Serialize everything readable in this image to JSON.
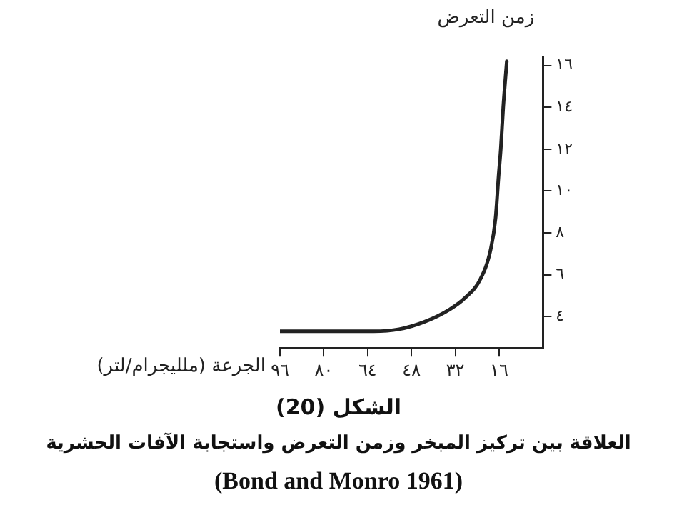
{
  "chart_data": {
    "type": "line",
    "title": "الشكل (20)",
    "subtitle": "العلاقة بين تركيز المبخر وزمن التعرض واستجابة الآفات الحشرية",
    "annotations": [
      "(Bond and Monro 1961)"
    ],
    "xlabel": "الجرعة (ملليجرام/لتر)",
    "ylabel": "زمن التعرض",
    "x": [
      96,
      80,
      61.8,
      52.5,
      43.3,
      34,
      28.4,
      22.8,
      19.1,
      17.3,
      16.2,
      15.4,
      14.5,
      13.2
    ],
    "series": [
      {
        "color": "#222222",
        "values": [
          3.3,
          3.3,
          3.3,
          3.4,
          3.75,
          4.35,
          4.9,
          5.8,
          7.2,
          8.7,
          10.7,
          12,
          14,
          16.2
        ]
      }
    ],
    "xlim": [
      96,
      0
    ],
    "xticks": [
      {
        "value": 96,
        "label": "٩٦"
      },
      {
        "value": 80,
        "label": "٨٠"
      },
      {
        "value": 64,
        "label": "٦٤"
      },
      {
        "value": 48,
        "label": "٤٨"
      },
      {
        "value": 32,
        "label": "٣٢"
      },
      {
        "value": 16,
        "label": "١٦"
      }
    ],
    "ylim": [
      2.5,
      16.4
    ],
    "yticks": [
      {
        "value": 4,
        "label": "٤"
      },
      {
        "value": 6,
        "label": "٦"
      },
      {
        "value": 8,
        "label": "٨"
      },
      {
        "value": 10,
        "label": "١٠"
      },
      {
        "value": 12,
        "label": "١٢"
      },
      {
        "value": 14,
        "label": "١٤"
      },
      {
        "value": 16,
        "label": "١٦"
      }
    ],
    "grid": false,
    "legend": false,
    "marker": "none",
    "line_style": "solid"
  }
}
